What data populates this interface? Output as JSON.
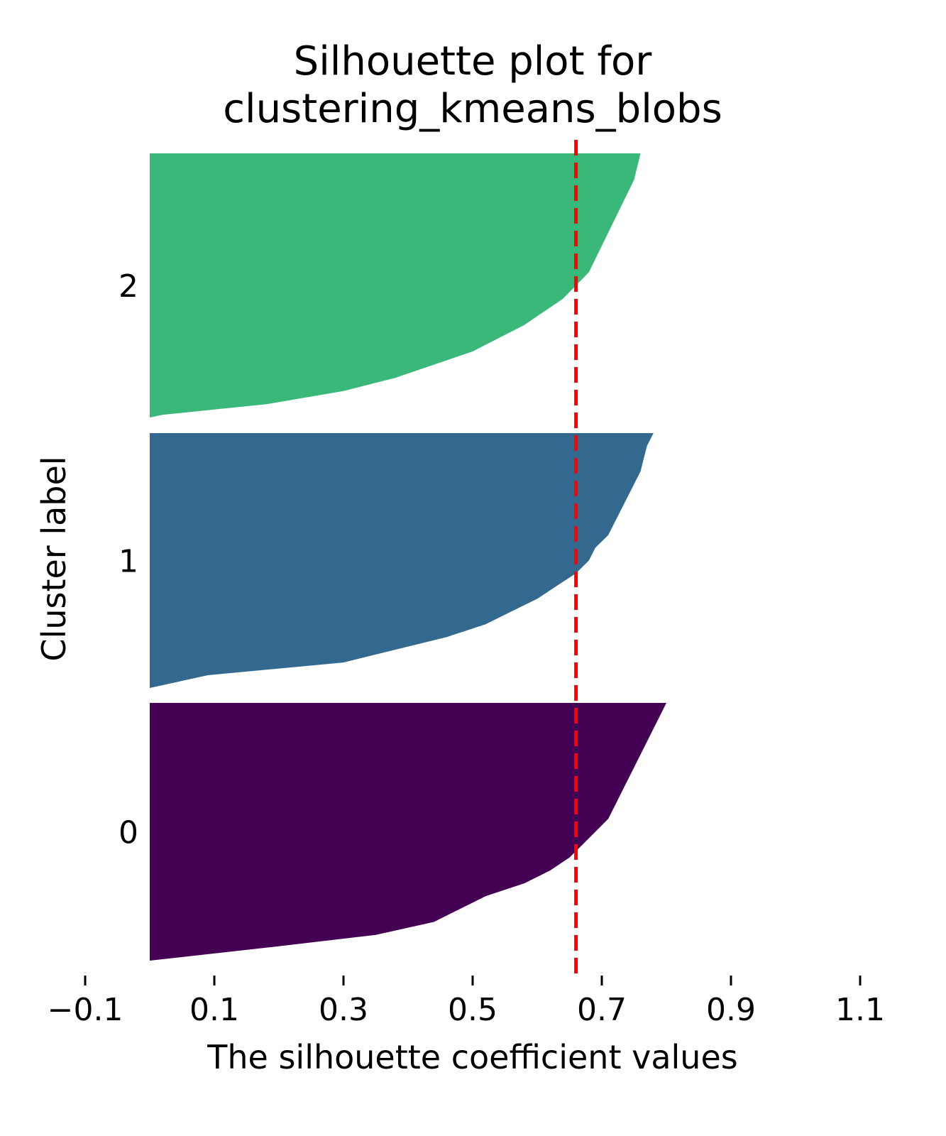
{
  "chart_data": {
    "type": "silhouette",
    "title_lines": [
      "Silhouette plot for",
      "clustering_kmeans_blobs"
    ],
    "xlabel": "The silhouette coefficient values",
    "ylabel": "Cluster label",
    "xlim": [
      -0.1,
      1.1
    ],
    "xticks": [
      -0.1,
      0.1,
      0.3,
      0.5,
      0.7,
      0.9,
      1.1
    ],
    "xtick_labels": [
      "−0.1",
      "0.1",
      "0.3",
      "0.5",
      "0.7",
      "0.9",
      "1.1"
    ],
    "mean_silhouette": 0.66,
    "grid": false,
    "clusters": [
      {
        "label": "0",
        "color": "#440154",
        "samples": 100,
        "profile": [
          [
            0.0,
            0.0
          ],
          [
            0.05,
            0.18
          ],
          [
            0.1,
            0.35
          ],
          [
            0.15,
            0.44
          ],
          [
            0.2,
            0.48
          ],
          [
            0.25,
            0.52
          ],
          [
            0.3,
            0.58
          ],
          [
            0.35,
            0.62
          ],
          [
            0.4,
            0.65
          ],
          [
            0.45,
            0.67
          ],
          [
            0.5,
            0.69
          ],
          [
            0.55,
            0.71
          ],
          [
            0.6,
            0.72
          ],
          [
            0.65,
            0.73
          ],
          [
            0.7,
            0.74
          ],
          [
            0.75,
            0.75
          ],
          [
            0.8,
            0.76
          ],
          [
            0.85,
            0.77
          ],
          [
            0.9,
            0.78
          ],
          [
            0.95,
            0.79
          ],
          [
            1.0,
            0.8
          ]
        ]
      },
      {
        "label": "1",
        "color": "#33698f",
        "samples": 100,
        "profile": [
          [
            0.0,
            0.0
          ],
          [
            0.05,
            0.09
          ],
          [
            0.1,
            0.3
          ],
          [
            0.15,
            0.38
          ],
          [
            0.2,
            0.46
          ],
          [
            0.25,
            0.52
          ],
          [
            0.3,
            0.56
          ],
          [
            0.35,
            0.6
          ],
          [
            0.4,
            0.63
          ],
          [
            0.45,
            0.66
          ],
          [
            0.5,
            0.68
          ],
          [
            0.55,
            0.69
          ],
          [
            0.6,
            0.71
          ],
          [
            0.65,
            0.72
          ],
          [
            0.7,
            0.73
          ],
          [
            0.75,
            0.74
          ],
          [
            0.8,
            0.75
          ],
          [
            0.85,
            0.76
          ],
          [
            0.9,
            0.765
          ],
          [
            0.95,
            0.77
          ],
          [
            1.0,
            0.78
          ]
        ]
      },
      {
        "label": "2",
        "color": "#3ab87a",
        "samples": 100,
        "profile": [
          [
            0.0,
            0.0
          ],
          [
            0.01,
            0.02
          ],
          [
            0.03,
            0.1
          ],
          [
            0.05,
            0.18
          ],
          [
            0.1,
            0.3
          ],
          [
            0.15,
            0.38
          ],
          [
            0.2,
            0.44
          ],
          [
            0.25,
            0.5
          ],
          [
            0.3,
            0.54
          ],
          [
            0.35,
            0.58
          ],
          [
            0.4,
            0.61
          ],
          [
            0.45,
            0.64
          ],
          [
            0.5,
            0.66
          ],
          [
            0.55,
            0.68
          ],
          [
            0.6,
            0.69
          ],
          [
            0.65,
            0.7
          ],
          [
            0.7,
            0.71
          ],
          [
            0.75,
            0.72
          ],
          [
            0.8,
            0.73
          ],
          [
            0.85,
            0.74
          ],
          [
            0.9,
            0.75
          ],
          [
            0.95,
            0.755
          ],
          [
            1.0,
            0.76
          ]
        ]
      }
    ]
  }
}
